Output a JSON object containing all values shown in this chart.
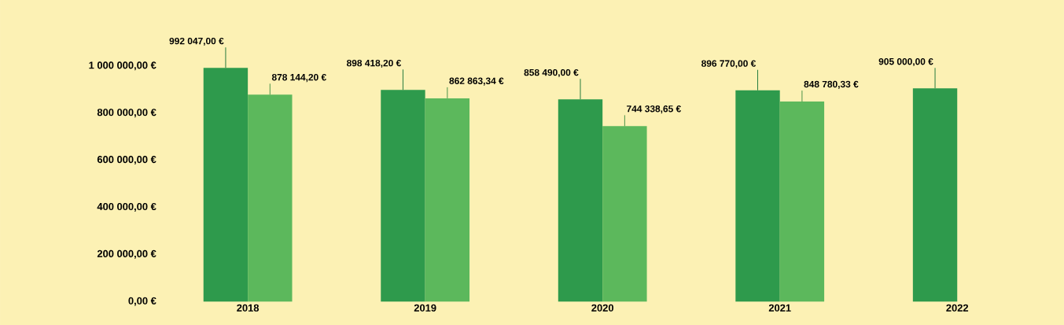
{
  "chart_data": {
    "type": "bar",
    "categories": [
      "2018",
      "2019",
      "2020",
      "2021",
      "2022"
    ],
    "series": [
      {
        "color": "#2e9a4c",
        "values": [
          992047.0,
          898418.2,
          858490.0,
          896770.0,
          905000.0
        ],
        "value_labels": [
          "992 047,00 €",
          "898 418,20 €",
          "858 490,00 €",
          "896 770,00 €",
          "905 000,00 €"
        ]
      },
      {
        "color": "#5cb85c",
        "values": [
          878144.2,
          862863.34,
          744338.65,
          848780.33,
          null
        ],
        "value_labels": [
          "878 144,20 €",
          "862 863,34 €",
          "744 338,65 €",
          "848 780,33 €",
          null
        ]
      }
    ],
    "ylim": [
      0,
      1000000
    ],
    "yticks": [
      {
        "value": 0,
        "label": "0,00 €"
      },
      {
        "value": 200000,
        "label": "200 000,00 €"
      },
      {
        "value": 400000,
        "label": "400 000,00 €"
      },
      {
        "value": 600000,
        "label": "600 000,00 €"
      },
      {
        "value": 800000,
        "label": "800 000,00 €"
      },
      {
        "value": 1000000,
        "label": "1 000 000,00 €"
      }
    ]
  }
}
